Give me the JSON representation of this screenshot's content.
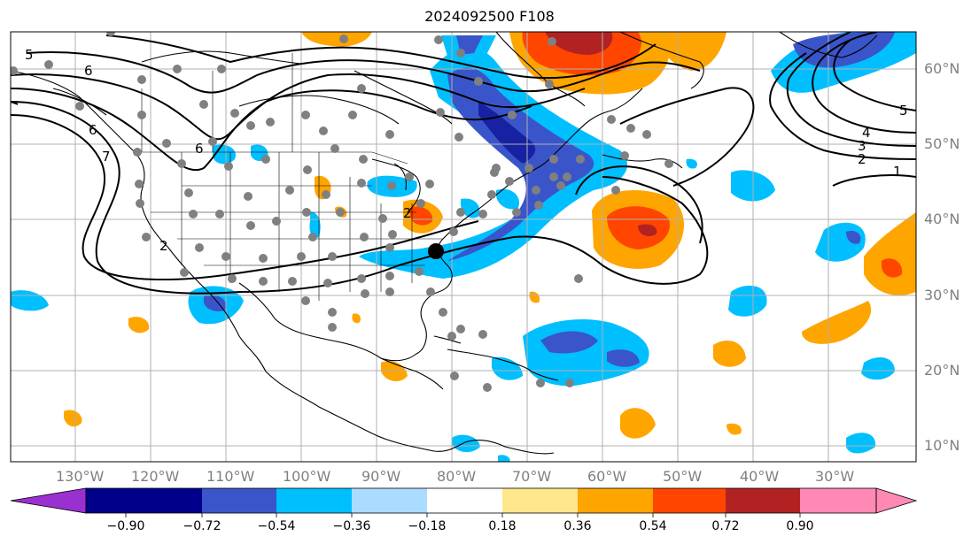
{
  "title": "2024092500 F108",
  "longitude_labels": [
    "130°W",
    "120°W",
    "110°W",
    "100°W",
    "90°W",
    "80°W",
    "70°W",
    "60°W",
    "50°W",
    "40°W",
    "30°W"
  ],
  "latitude_labels": [
    "60°N",
    "50°N",
    "40°N",
    "30°N",
    "20°N",
    "10°N"
  ],
  "contour_labels": [
    "5",
    "6",
    "6",
    "6",
    "7",
    "5",
    "4",
    "3",
    "2",
    "1",
    "2",
    "2"
  ],
  "colorbar": {
    "tick_labels": [
      "−0.90",
      "−0.72",
      "−0.54",
      "−0.36",
      "−0.18",
      "0.18",
      "0.36",
      "0.54",
      "0.72",
      "0.90"
    ],
    "colors": [
      "#9b30d0",
      "#00008b",
      "#3a55c9",
      "#00bfff",
      "#aadcff",
      "#ffffff",
      "#ffe88c",
      "#ffa500",
      "#ff4500",
      "#b22222",
      "#ff88b4"
    ]
  },
  "colors": {
    "coastline": "#000000",
    "contour": "#000000",
    "station": "#808080",
    "marker": "#000000",
    "grid": "#b0b0b0"
  }
}
